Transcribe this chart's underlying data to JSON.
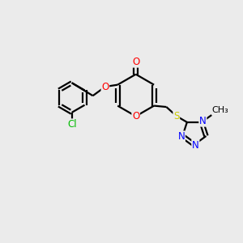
{
  "background_color": "#ebebeb",
  "bond_color": "#000000",
  "atom_colors": {
    "O": "#ff0000",
    "N": "#0000ff",
    "S": "#cccc00",
    "Cl": "#00bb00",
    "C": "#000000"
  },
  "line_width": 1.6,
  "font_size": 8.5,
  "figsize": [
    3.0,
    3.0
  ],
  "dpi": 100
}
